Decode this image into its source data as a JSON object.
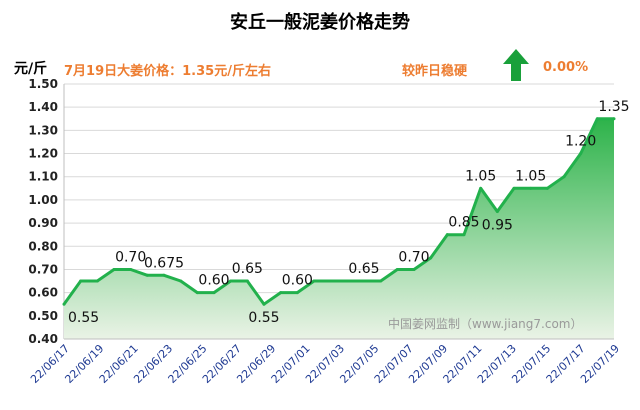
{
  "title": "安丘一般泥姜价格走势",
  "unit_label": "元/斤",
  "price_info": "7月19日大姜价格：1.35元/斤左右",
  "compare_text": "较昨日稳硬",
  "change_text": "0.00%",
  "watermark": "中国姜网监制（www.jiang7.com）",
  "colors": {
    "line": "#22b14c",
    "fill_top": "#2db34a",
    "fill_bottom": "#eaf3e6",
    "accent": "#ed7d31",
    "arrow": "#19a03a"
  },
  "arrow_icon": "up-arrow-icon",
  "chart_data": {
    "type": "area",
    "title": "安丘一般泥姜价格走势",
    "ylabel": "元/斤",
    "xlabel": "",
    "ylim": [
      0.4,
      1.5
    ],
    "yticks": [
      "0.40",
      "0.50",
      "0.60",
      "0.70",
      "0.80",
      "0.90",
      "1.00",
      "1.10",
      "1.20",
      "1.30",
      "1.40",
      "1.50"
    ],
    "x_tick_labels": [
      "22/06/17",
      "22/06/19",
      "22/06/21",
      "22/06/23",
      "22/06/25",
      "22/06/27",
      "22/06/29",
      "22/07/01",
      "22/07/03",
      "22/07/05",
      "22/07/07",
      "22/07/09",
      "22/07/11",
      "22/07/13",
      "22/07/15",
      "22/07/17",
      "22/07/19"
    ],
    "values": [
      0.55,
      0.65,
      0.65,
      0.7,
      0.7,
      0.675,
      0.675,
      0.65,
      0.6,
      0.6,
      0.65,
      0.65,
      0.55,
      0.6,
      0.6,
      0.65,
      0.65,
      0.65,
      0.65,
      0.65,
      0.7,
      0.7,
      0.75,
      0.85,
      0.85,
      1.05,
      0.95,
      1.05,
      1.05,
      1.05,
      1.1,
      1.2,
      1.35,
      1.35
    ],
    "data_labels": [
      {
        "index": 0,
        "text": "0.55",
        "pos": "below"
      },
      {
        "index": 4,
        "text": "0.70",
        "pos": "above"
      },
      {
        "index": 6,
        "text": "0.675",
        "pos": "above"
      },
      {
        "index": 9,
        "text": "0.60",
        "pos": "above"
      },
      {
        "index": 11,
        "text": "0.65",
        "pos": "above"
      },
      {
        "index": 12,
        "text": "0.55",
        "pos": "below"
      },
      {
        "index": 14,
        "text": "0.60",
        "pos": "above"
      },
      {
        "index": 18,
        "text": "0.65",
        "pos": "above"
      },
      {
        "index": 21,
        "text": "0.70",
        "pos": "above"
      },
      {
        "index": 24,
        "text": "0.85",
        "pos": "above"
      },
      {
        "index": 25,
        "text": "1.05",
        "pos": "above"
      },
      {
        "index": 26,
        "text": "0.95",
        "pos": "below"
      },
      {
        "index": 28,
        "text": "1.05",
        "pos": "above"
      },
      {
        "index": 31,
        "text": "1.20",
        "pos": "above"
      },
      {
        "index": 33,
        "text": "1.35",
        "pos": "above"
      }
    ]
  }
}
